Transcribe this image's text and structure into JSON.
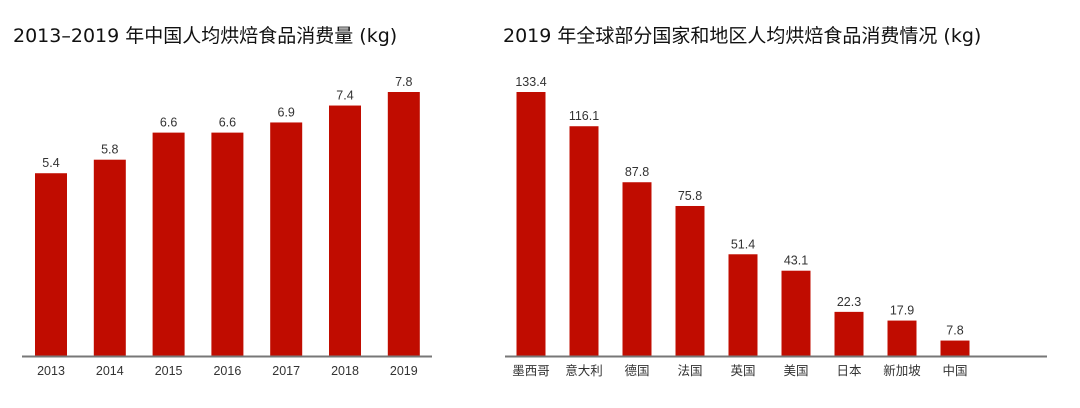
{
  "chart_data": [
    {
      "type": "bar",
      "title": "2013–2019 年中国人均烘焙食品消费量 (kg)",
      "categories": [
        "2013",
        "2014",
        "2015",
        "2016",
        "2017",
        "2018",
        "2019"
      ],
      "values": [
        5.4,
        5.8,
        6.6,
        6.6,
        6.9,
        7.4,
        7.8
      ],
      "value_labels": [
        "5.4",
        "5.8",
        "6.6",
        "6.6",
        "6.9",
        "7.4",
        "7.8"
      ],
      "xlabel": "",
      "ylabel": "",
      "ylim": [
        0,
        7.8
      ],
      "grid": false,
      "bar_color": "#C00C00",
      "axis_color": "#777777"
    },
    {
      "type": "bar",
      "title": "2019 年全球部分国家和地区人均烘焙食品消费情况 (kg)",
      "categories": [
        "墨西哥",
        "意大利",
        "德国",
        "法国",
        "英国",
        "美国",
        "日本",
        "新加坡",
        "中国"
      ],
      "values": [
        133.4,
        116.1,
        87.8,
        75.8,
        51.4,
        43.1,
        22.3,
        17.9,
        7.8
      ],
      "value_labels": [
        "133.4",
        "116.1",
        "87.8",
        "75.8",
        "51.4",
        "43.1",
        "22.3",
        "17.9",
        "7.8"
      ],
      "xlabel": "",
      "ylabel": "",
      "ylim": [
        0,
        133.4
      ],
      "grid": false,
      "bar_color": "#C00C00",
      "axis_color": "#777777"
    }
  ]
}
